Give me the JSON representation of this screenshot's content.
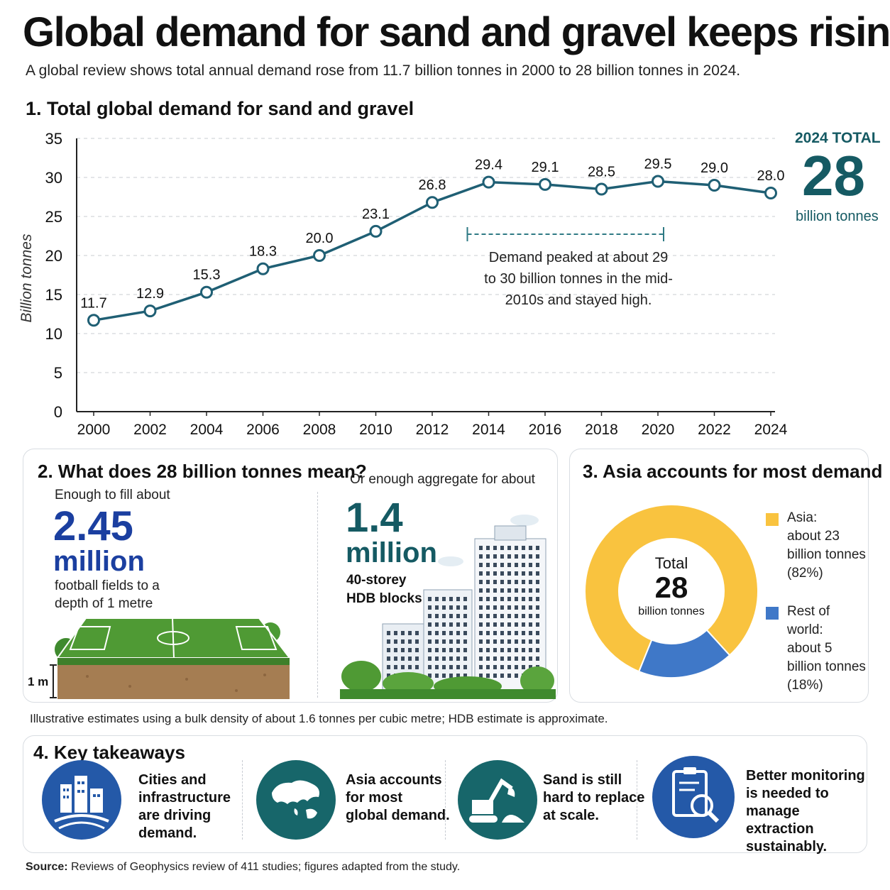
{
  "header": {
    "title": "Global demand for sand and gravel keeps rising",
    "subtitle": "A global review shows total annual demand rose from 11.7 billion tonnes in 2000 to 28 billion tonnes in 2024."
  },
  "section1": {
    "title": "1. Total global demand for sand and gravel",
    "total_label": "2024 TOTAL",
    "total_value": "28",
    "total_unit": "billion tonnes",
    "annotation": "Demand peaked at about 29 to 30 billion tonnes in the mid-2010s and stayed high."
  },
  "chart_data": {
    "type": "line",
    "title": "1. Total global demand for sand and gravel",
    "xlabel": "",
    "ylabel": "Billion tonnes",
    "ylim": [
      0,
      35
    ],
    "yticks": [
      0,
      5,
      10,
      15,
      20,
      25,
      30,
      35
    ],
    "grid": "horizontal dashed",
    "x": [
      "2000",
      "2002",
      "2004",
      "2006",
      "2008",
      "2010",
      "2012",
      "2014",
      "2016",
      "2018",
      "2020",
      "2022",
      "2024"
    ],
    "values": [
      11.7,
      12.9,
      15.3,
      18.3,
      20.0,
      23.1,
      26.8,
      29.4,
      29.1,
      28.5,
      29.5,
      29.0,
      28.0
    ],
    "data_labels": [
      "11.7",
      "12.9",
      "15.3",
      "18.3",
      "20.0",
      "23.1",
      "26.8",
      "29.4",
      "29.1",
      "28.5",
      "29.5",
      "29.0",
      "28.0"
    ],
    "line_color": "#1f5f74",
    "annotation_range": [
      "2014",
      "2020"
    ]
  },
  "section2": {
    "title": "2. What does 28 billion tonnes mean?",
    "left_intro": "Enough to fill about",
    "left_number": "2.45",
    "left_unit": "million",
    "left_desc_1": "football fields to a",
    "left_desc_2": "depth of 1 metre",
    "depth_label": "1 m",
    "right_intro": "Or enough aggregate for about",
    "right_number": "1.4",
    "right_unit": "million",
    "right_desc_1": "40-storey",
    "right_desc_2": "HDB blocks"
  },
  "section3": {
    "title": "3. Asia accounts for most demand",
    "center_label": "Total",
    "center_value": "28",
    "center_unit": "billion tonnes",
    "slices": [
      {
        "name": "Asia",
        "value": 23,
        "share": 82,
        "color": "#f9c33f",
        "legend_1": "Asia:",
        "legend_2": "about 23",
        "legend_3": "billion tonnes",
        "legend_4": "(82%)"
      },
      {
        "name": "Rest of world",
        "value": 5,
        "share": 18,
        "color": "#3f78c8",
        "legend_1": "Rest of world:",
        "legend_2": "about 5",
        "legend_3": "billion tonnes",
        "legend_4": "(18%)"
      }
    ]
  },
  "note": "Illustrative estimates using a bulk density of about 1.6 tonnes per cubic metre; HDB estimate is approximate.",
  "section4": {
    "title": "4. Key takeaways",
    "items": [
      {
        "icon": "city-icon",
        "line1": "Cities and",
        "line2": "infrastructure",
        "line3": "are driving",
        "line4": "demand."
      },
      {
        "icon": "globe-asia-icon",
        "line1": "Asia accounts",
        "line2": "for most",
        "line3": "global demand.",
        "line4": ""
      },
      {
        "icon": "excavator-icon",
        "line1": "Sand is still",
        "line2": "hard to replace",
        "line3": "at scale.",
        "line4": ""
      },
      {
        "icon": "clipboard-search-icon",
        "line1": "Better monitoring",
        "line2": "is needed to",
        "line3": "manage extraction",
        "line4": "sustainably."
      }
    ]
  },
  "source": {
    "label": "Source:",
    "text": "Reviews of Geophysics review of 411 studies; figures adapted from the study."
  }
}
